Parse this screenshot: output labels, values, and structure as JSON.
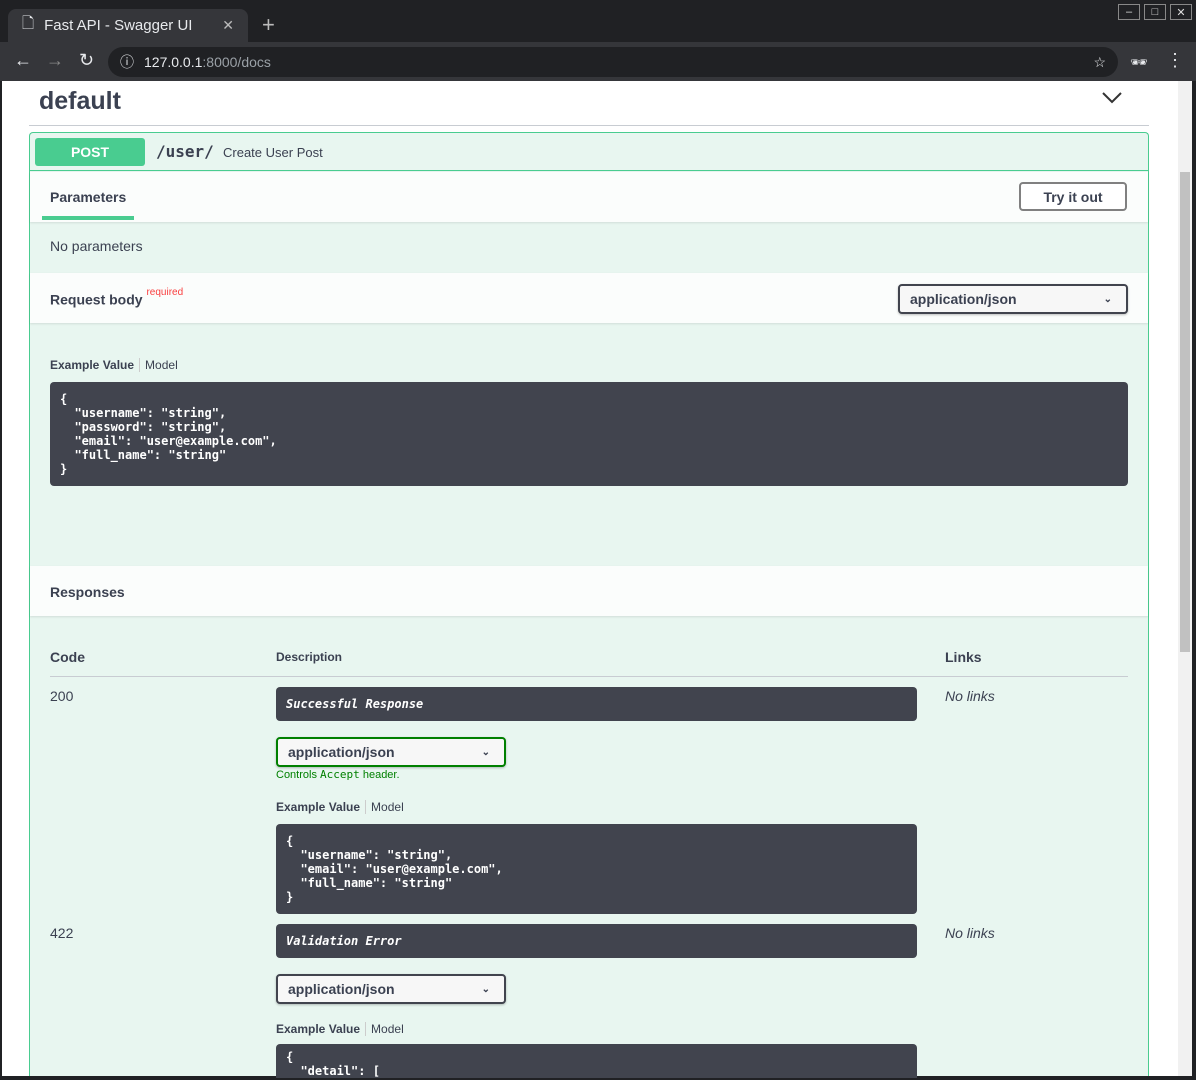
{
  "browser": {
    "tab_title": "Fast API - Swagger UI",
    "url_host": "127.0.0.1",
    "url_path": ":8000/docs"
  },
  "section": {
    "title": "default"
  },
  "operation": {
    "method": "POST",
    "path": "/user/",
    "summary": "Create User Post",
    "parameters_tab": "Parameters",
    "try_it_out": "Try it out",
    "no_parameters": "No parameters",
    "request_body_label": "Request body",
    "required": "required",
    "request_content_type": "application/json",
    "example_value": "Example Value",
    "model": "Model",
    "request_example": "{\n  \"username\": \"string\",\n  \"password\": \"string\",\n  \"email\": \"user@example.com\",\n  \"full_name\": \"string\"\n}",
    "responses_label": "Responses",
    "columns": {
      "code": "Code",
      "description": "Description",
      "links": "Links"
    },
    "responses": [
      {
        "code": "200",
        "description": "Successful Response",
        "content_type": "application/json",
        "controls_prefix": "Controls ",
        "controls_code": "Accept",
        "controls_suffix": " header.",
        "links": "No links",
        "example": "{\n  \"username\": \"string\",\n  \"email\": \"user@example.com\",\n  \"full_name\": \"string\"\n}"
      },
      {
        "code": "422",
        "description": "Validation Error",
        "content_type": "application/json",
        "links": "No links",
        "example": "{\n  \"detail\": ["
      }
    ]
  },
  "colors": {
    "post": "#49cc90",
    "post_bg": "#e8f6f0",
    "code_bg": "#41444e"
  }
}
